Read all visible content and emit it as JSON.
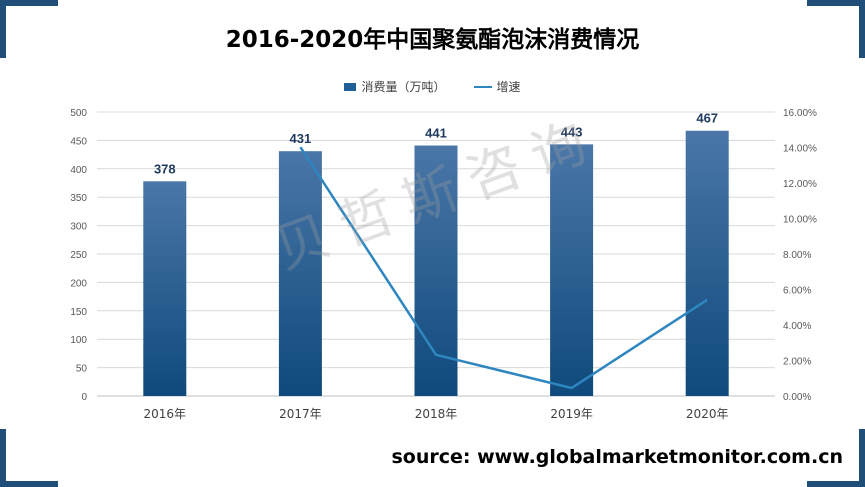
{
  "title": "2016-2020年中国聚氨酯泡沫消费情况",
  "watermark": "贝哲斯咨询",
  "source": "source: www.globalmarketmonitor.com.cn",
  "colors": {
    "bar_top": "#4a76a8",
    "bar_bottom": "#0e4a7b",
    "line": "#2e86c1",
    "corner": "#1f4e79"
  },
  "chart_data": {
    "type": "bar",
    "categories": [
      "2016年",
      "2017年",
      "2018年",
      "2019年",
      "2020年"
    ],
    "series": [
      {
        "name": "消费量（万吨）",
        "type": "bar",
        "axis": "left",
        "values": [
          378,
          431,
          441,
          443,
          467
        ],
        "data_labels": [
          "378",
          "431",
          "441",
          "443",
          "467"
        ]
      },
      {
        "name": "增速",
        "type": "line",
        "axis": "right",
        "values": [
          null,
          14.02,
          2.32,
          0.45,
          5.42
        ]
      }
    ],
    "y_left": {
      "ylim": [
        0,
        500
      ],
      "ticks": [
        "0",
        "50",
        "100",
        "150",
        "200",
        "250",
        "300",
        "350",
        "400",
        "450",
        "500"
      ]
    },
    "y_right": {
      "ylim": [
        0,
        16
      ],
      "ticks": [
        "0.00%",
        "2.00%",
        "4.00%",
        "6.00%",
        "8.00%",
        "10.00%",
        "12.00%",
        "14.00%",
        "16.00%"
      ]
    },
    "grid": true,
    "legend_position": "top"
  }
}
